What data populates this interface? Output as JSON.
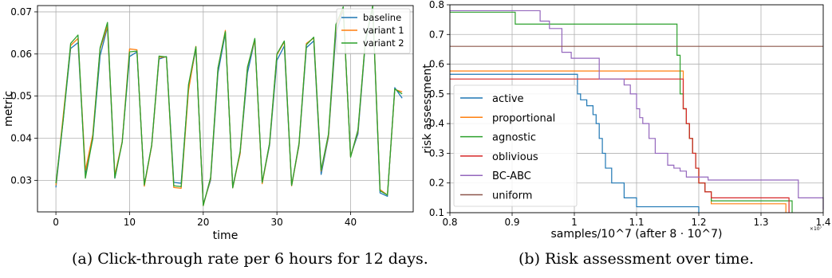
{
  "captions": {
    "a": "(a) Click-through rate per 6 hours for 12 days.",
    "b": "(b) Risk assessment over time."
  },
  "chart_data": [
    {
      "type": "line",
      "xlabel": "time",
      "ylabel": "metric",
      "xlim": [
        -2.5,
        48.5
      ],
      "ylim": [
        0.0225,
        0.0715
      ],
      "xticks": [
        0,
        10,
        20,
        30,
        40
      ],
      "yticks": [
        0.03,
        0.04,
        0.05,
        0.06,
        0.07
      ],
      "ytick_labels": [
        "0.03",
        "0.04",
        "0.05",
        "0.06",
        "0.07"
      ],
      "grid": true,
      "legend_position": "top-right",
      "x": [
        0,
        1,
        2,
        3,
        4,
        5,
        6,
        7,
        8,
        9,
        10,
        11,
        12,
        13,
        14,
        15,
        16,
        17,
        18,
        19,
        20,
        21,
        22,
        23,
        24,
        25,
        26,
        27,
        28,
        29,
        30,
        31,
        32,
        33,
        34,
        35,
        36,
        37,
        38,
        39,
        40,
        41,
        42,
        43,
        44,
        45,
        46,
        47
      ],
      "series": [
        {
          "name": "baseline",
          "color": "#1f77b4",
          "values": [
            0.0283,
            0.0445,
            0.0613,
            0.0627,
            0.0318,
            0.0398,
            0.0596,
            0.0664,
            0.0305,
            0.0392,
            0.0594,
            0.0605,
            0.0289,
            0.0382,
            0.0588,
            0.0594,
            0.0295,
            0.0293,
            0.052,
            0.0612,
            0.0243,
            0.03,
            0.0555,
            0.065,
            0.0285,
            0.0363,
            0.0555,
            0.0634,
            0.0294,
            0.0383,
            0.0585,
            0.0619,
            0.0288,
            0.0383,
            0.0615,
            0.0631,
            0.0314,
            0.0403,
            0.0648,
            0.0705,
            0.0358,
            0.041,
            0.0626,
            0.071,
            0.027,
            0.0262,
            0.052,
            0.0495
          ]
        },
        {
          "name": "variant 1",
          "color": "#ff7f0e",
          "values": [
            0.0288,
            0.0455,
            0.062,
            0.0637,
            0.0323,
            0.0408,
            0.0612,
            0.0667,
            0.0312,
            0.0392,
            0.0612,
            0.061,
            0.0286,
            0.0382,
            0.0592,
            0.0593,
            0.0283,
            0.0281,
            0.0513,
            0.0618,
            0.024,
            0.0304,
            0.0566,
            0.0656,
            0.0282,
            0.0363,
            0.0569,
            0.0633,
            0.0292,
            0.0387,
            0.0598,
            0.0629,
            0.0287,
            0.0385,
            0.0625,
            0.0638,
            0.0322,
            0.0406,
            0.0663,
            0.0708,
            0.0356,
            0.0417,
            0.0631,
            0.0712,
            0.0278,
            0.0265,
            0.0516,
            0.051
          ]
        },
        {
          "name": "variant 2",
          "color": "#2ca02c",
          "values": [
            0.0293,
            0.0445,
            0.0625,
            0.0645,
            0.0305,
            0.04,
            0.0615,
            0.0675,
            0.0306,
            0.039,
            0.0605,
            0.0607,
            0.0289,
            0.0384,
            0.0595,
            0.0593,
            0.0287,
            0.0285,
            0.0527,
            0.0617,
            0.024,
            0.0307,
            0.0567,
            0.0653,
            0.0282,
            0.0368,
            0.0568,
            0.0637,
            0.0295,
            0.0388,
            0.06,
            0.0631,
            0.0288,
            0.0388,
            0.0622,
            0.064,
            0.0324,
            0.041,
            0.067,
            0.0712,
            0.0355,
            0.042,
            0.063,
            0.0714,
            0.0275,
            0.0265,
            0.0517,
            0.0505
          ]
        }
      ]
    },
    {
      "type": "line",
      "step": true,
      "xlabel": "samples/10^7 (after 8 · 10^7)",
      "ylabel": "risk assessment",
      "xlim": [
        0.8,
        1.4
      ],
      "ylim": [
        0.1,
        0.8
      ],
      "xticks": [
        0.8,
        0.9,
        1.0,
        1.1,
        1.2,
        1.3,
        1.4
      ],
      "xtick_labels": [
        "0.8",
        "0.9",
        "1",
        "1.1",
        "1.2",
        "1.3",
        "1.4"
      ],
      "yticks": [
        0.1,
        0.2,
        0.3,
        0.4,
        0.5,
        0.6,
        0.7,
        0.8
      ],
      "ytick_labels": [
        "0.1",
        "0.2",
        "0.3",
        "0.4",
        "0.5",
        "0.6",
        "0.7",
        "0.8"
      ],
      "offset_text": "×10⁷",
      "grid": true,
      "legend_position": "lower-left",
      "series": [
        {
          "name": "active",
          "color": "#1f77b4",
          "x": [
            0.8,
            1.0,
            1.005,
            1.01,
            1.02,
            1.03,
            1.035,
            1.04,
            1.045,
            1.05,
            1.06,
            1.08,
            1.1,
            1.14,
            1.2
          ],
          "values": [
            0.566,
            0.566,
            0.5,
            0.48,
            0.46,
            0.43,
            0.4,
            0.35,
            0.3,
            0.25,
            0.2,
            0.15,
            0.12,
            0.12,
            0.1
          ]
        },
        {
          "name": "proportional",
          "color": "#ff7f0e",
          "x": [
            0.8,
            1.165,
            1.175,
            1.18,
            1.185,
            1.19,
            1.195,
            1.2,
            1.21,
            1.22,
            1.3,
            1.34
          ],
          "values": [
            0.577,
            0.577,
            0.45,
            0.4,
            0.35,
            0.3,
            0.25,
            0.2,
            0.17,
            0.13,
            0.13,
            0.1
          ]
        },
        {
          "name": "agnostic",
          "color": "#2ca02c",
          "x": [
            0.8,
            0.905,
            1.165,
            1.17,
            1.175,
            1.18,
            1.185,
            1.19,
            1.195,
            1.2,
            1.21,
            1.22,
            1.3,
            1.35
          ],
          "values": [
            0.775,
            0.735,
            0.63,
            0.5,
            0.45,
            0.4,
            0.35,
            0.3,
            0.25,
            0.2,
            0.17,
            0.14,
            0.14,
            0.1
          ]
        },
        {
          "name": "oblivious",
          "color": "#d62728",
          "x": [
            0.8,
            1.17,
            1.175,
            1.18,
            1.185,
            1.19,
            1.195,
            1.2,
            1.21,
            1.22,
            1.3,
            1.345
          ],
          "values": [
            0.55,
            0.55,
            0.45,
            0.4,
            0.35,
            0.3,
            0.25,
            0.2,
            0.17,
            0.15,
            0.15,
            0.1
          ]
        },
        {
          "name": "BC-ABC",
          "color": "#9467bd",
          "x": [
            0.8,
            0.945,
            0.96,
            0.98,
            0.995,
            1.04,
            1.06,
            1.08,
            1.09,
            1.1,
            1.105,
            1.11,
            1.12,
            1.13,
            1.15,
            1.16,
            1.17,
            1.18,
            1.205,
            1.215,
            1.3,
            1.36,
            1.4
          ],
          "values": [
            0.78,
            0.745,
            0.72,
            0.64,
            0.62,
            0.55,
            0.55,
            0.53,
            0.5,
            0.45,
            0.42,
            0.4,
            0.35,
            0.3,
            0.26,
            0.25,
            0.24,
            0.22,
            0.22,
            0.21,
            0.21,
            0.15,
            0.11
          ]
        },
        {
          "name": "uniform",
          "color": "#8c564b",
          "x": [
            0.8,
            1.4
          ],
          "values": [
            0.66,
            0.66
          ]
        }
      ]
    }
  ]
}
